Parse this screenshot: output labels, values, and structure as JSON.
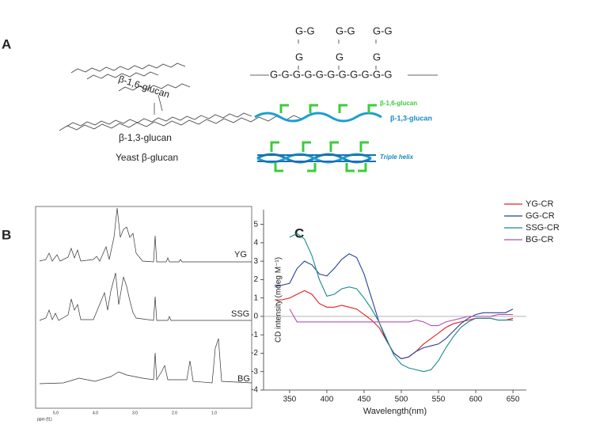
{
  "panel_labels": [
    "A",
    "B",
    "C"
  ],
  "panel_a": {
    "branch_label": "β-1,6-glucan",
    "backbone_label": "β-1,3-glucan",
    "caption": "Yeast β-glucan",
    "side_pairs": [
      "G-G",
      "G-G",
      "G-G"
    ],
    "side_links": [
      "G",
      "G",
      "G"
    ],
    "main_chain": "G-G-G-G-G-G-G-G-G-G-G",
    "legend_16": "β-1,6-glucan",
    "legend_13": "β-1,3-glucan",
    "helix_label": "Triple helix"
  },
  "panel_b": {
    "samples": [
      "YG",
      "SSG",
      "BG"
    ],
    "xticks": [
      "5.0",
      "4.0",
      "3.0",
      "2.0",
      "1.0"
    ],
    "x_label": "ppm (f1)"
  },
  "chart_data": [
    {
      "type": "line",
      "x_label": "Wavelength(nm)",
      "y_label": "CD intensity (mdeg M⁻¹)",
      "x": [
        330,
        340,
        350,
        360,
        370,
        380,
        390,
        400,
        410,
        420,
        430,
        440,
        450,
        460,
        470,
        480,
        490,
        500,
        510,
        520,
        530,
        540,
        550,
        560,
        570,
        580,
        590,
        600,
        610,
        620,
        630,
        640,
        650
      ],
      "series": [
        {
          "name": "YG-CR",
          "color": "#e02020",
          "values": [
            0.9,
            0.9,
            1.0,
            1.2,
            1.4,
            1.2,
            0.7,
            0.5,
            0.5,
            0.6,
            0.5,
            0.4,
            0.1,
            -0.2,
            -0.6,
            -1.3,
            -2.0,
            -2.3,
            -2.2,
            -1.9,
            -1.5,
            -1.2,
            -0.9,
            -0.6,
            -0.4,
            -0.3,
            -0.2,
            -0.1,
            -0.1,
            -0.1,
            -0.2,
            -0.2,
            -0.1
          ]
        },
        {
          "name": "GG-CR",
          "color": "#2a3f9a",
          "values": [
            1.6,
            1.7,
            1.8,
            2.6,
            3.0,
            2.8,
            2.3,
            2.2,
            2.6,
            3.1,
            3.4,
            3.2,
            2.3,
            1.0,
            -0.3,
            -1.3,
            -2.0,
            -2.3,
            -2.2,
            -1.9,
            -1.7,
            -1.6,
            -1.5,
            -1.2,
            -0.8,
            -0.4,
            -0.1,
            0.1,
            0.2,
            0.2,
            0.2,
            0.2,
            0.4
          ]
        },
        {
          "name": "SSG-CR",
          "color": "#1a8a8a",
          "values": [
            null,
            null,
            4.3,
            4.5,
            4.2,
            3.3,
            2.0,
            1.1,
            1.2,
            1.5,
            1.6,
            1.5,
            1.0,
            0.4,
            -0.3,
            -1.2,
            -2.1,
            -2.6,
            -2.8,
            -2.9,
            -3.0,
            -2.9,
            -2.4,
            -1.7,
            -1.1,
            -0.6,
            -0.3,
            -0.1,
            -0.1,
            -0.1,
            -0.2,
            -0.2,
            -0.2
          ]
        },
        {
          "name": "BG-CR",
          "color": "#b050b0",
          "values": [
            null,
            null,
            0.4,
            -0.3,
            -0.3,
            -0.3,
            -0.3,
            -0.3,
            -0.3,
            -0.3,
            -0.3,
            -0.3,
            -0.3,
            -0.3,
            -0.3,
            -0.3,
            -0.3,
            -0.3,
            -0.3,
            -0.2,
            -0.3,
            -0.5,
            -0.5,
            -0.3,
            -0.2,
            -0.1,
            0.0,
            0.0,
            0.0,
            0.0,
            0.1,
            0.1,
            0.1
          ]
        }
      ],
      "xlim": [
        315,
        668
      ],
      "xticks": [
        350,
        400,
        450,
        500,
        550,
        600,
        650
      ],
      "ylim": [
        -4,
        5.8
      ],
      "yticks": [
        -4,
        -3,
        -2,
        -1,
        0,
        1,
        2,
        3,
        4,
        5
      ]
    }
  ]
}
